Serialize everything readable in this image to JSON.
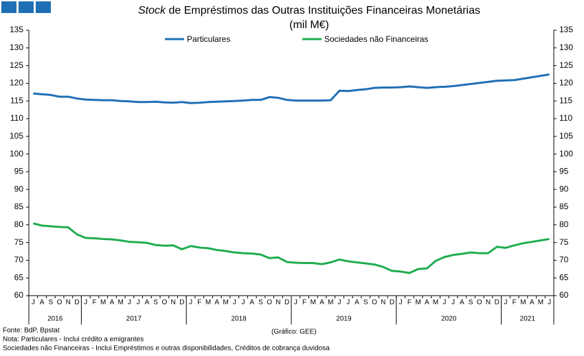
{
  "chart_data": {
    "type": "line",
    "title_italic": "Stock",
    "title": "de Empréstimos das Outras Instituições Financeiras Monetárias",
    "subtitle": "(mil M€)",
    "categories": [
      "J",
      "A",
      "S",
      "O",
      "N",
      "D",
      "J",
      "F",
      "M",
      "A",
      "M",
      "J",
      "J",
      "A",
      "S",
      "O",
      "N",
      "D",
      "J",
      "F",
      "M",
      "A",
      "M",
      "J",
      "J",
      "A",
      "S",
      "O",
      "N",
      "D",
      "J",
      "F",
      "M",
      "A",
      "M",
      "J",
      "J",
      "A",
      "S",
      "O",
      "N",
      "D",
      "J",
      "F",
      "M",
      "A",
      "M",
      "J",
      "J",
      "A",
      "S",
      "O",
      "N",
      "D",
      "J",
      "F",
      "M",
      "A",
      "M",
      "J"
    ],
    "years": [
      "2016",
      "2017",
      "2018",
      "2019",
      "2020",
      "2021"
    ],
    "series": [
      {
        "name": "Particulares",
        "color": "#1f6fb5",
        "values": [
          117.1,
          116.9,
          116.7,
          116.2,
          116.2,
          115.7,
          115.4,
          115.3,
          115.2,
          115.2,
          115.0,
          114.9,
          114.7,
          114.7,
          114.8,
          114.6,
          114.5,
          114.7,
          114.4,
          114.5,
          114.7,
          114.8,
          114.9,
          115.0,
          115.1,
          115.3,
          115.3,
          116.1,
          115.9,
          115.3,
          115.1,
          115.1,
          115.1,
          115.1,
          115.2,
          117.9,
          117.8,
          118.1,
          118.3,
          118.7,
          118.8,
          118.8,
          118.9,
          119.1,
          118.9,
          118.7,
          118.9,
          119.0,
          119.2,
          119.5,
          119.8,
          120.1,
          120.4,
          120.7,
          120.8,
          120.9,
          121.3,
          121.7,
          122.1,
          122.5
        ]
      },
      {
        "name": "Sociedades não Financeiras",
        "color": "#1fad4f",
        "values": [
          80.4,
          79.8,
          79.6,
          79.4,
          79.3,
          77.3,
          76.3,
          76.2,
          76.0,
          75.9,
          75.6,
          75.2,
          75.1,
          74.9,
          74.3,
          74.1,
          74.2,
          73.1,
          74.0,
          73.6,
          73.4,
          72.9,
          72.6,
          72.2,
          72.0,
          71.9,
          71.6,
          70.6,
          70.8,
          69.5,
          69.3,
          69.2,
          69.2,
          68.9,
          69.4,
          70.2,
          69.7,
          69.4,
          69.1,
          68.8,
          68.1,
          67.0,
          66.8,
          66.4,
          67.5,
          67.7,
          69.8,
          70.9,
          71.5,
          71.8,
          72.2,
          72.0,
          72.0,
          73.8,
          73.5,
          74.2,
          74.8,
          75.2,
          75.6,
          76.0
        ]
      }
    ],
    "ylim": [
      60,
      135
    ],
    "yticks": [
      60,
      65,
      70,
      75,
      80,
      85,
      90,
      95,
      100,
      105,
      110,
      115,
      120,
      125,
      130,
      135
    ],
    "y2lim": [
      60,
      135
    ],
    "y2ticks": [
      60,
      65,
      70,
      75,
      80,
      85,
      90,
      95,
      100,
      105,
      110,
      115,
      120,
      125,
      130,
      135
    ],
    "grid": false,
    "legend": "top",
    "source": "Fonte: BdP, Bpstat",
    "credit": "(Gráfico: GEE)",
    "notes": [
      "Nota: Particulares - Inclui crédito a emigrantes",
      "Sociedades não Financeiras - Inclui Empréstimos e outras disponibilidades, Créditos de cobrança duvidosa"
    ]
  }
}
